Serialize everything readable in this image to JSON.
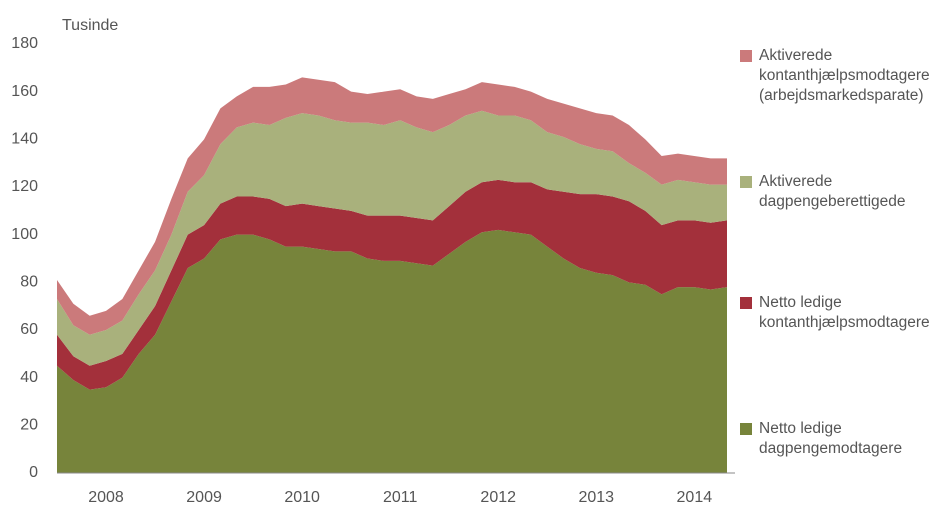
{
  "chart_data": {
    "type": "stacked_area",
    "y_label": "Tusinde",
    "categories": [
      null,
      null,
      null,
      "2008",
      null,
      null,
      null,
      null,
      null,
      "2009",
      null,
      null,
      null,
      null,
      null,
      "2010",
      null,
      null,
      null,
      null,
      null,
      "2011",
      null,
      null,
      null,
      null,
      null,
      "2012",
      null,
      null,
      null,
      null,
      null,
      "2013",
      null,
      null,
      null,
      null,
      null,
      "2014",
      null,
      null
    ],
    "ylim": [
      0,
      180
    ],
    "yticks": [
      0,
      20,
      40,
      60,
      80,
      100,
      120,
      140,
      160,
      180
    ],
    "series": [
      {
        "name": "Netto ledige dagpengemodtagere",
        "color": "#77843b",
        "values": [
          45,
          39,
          35,
          36,
          40,
          50,
          58,
          72,
          86,
          90,
          98,
          100,
          100,
          98,
          95,
          95,
          94,
          93,
          93,
          90,
          89,
          89,
          88,
          87,
          92,
          97,
          101,
          102,
          101,
          100,
          95,
          90,
          86,
          84,
          83,
          80,
          79,
          75,
          78,
          78,
          77,
          78
        ]
      },
      {
        "name": "Netto ledige kontanthjælpsmodtagere",
        "color": "#a3303b",
        "values": [
          13,
          10,
          10,
          11,
          10,
          10,
          12,
          13,
          14,
          14,
          15,
          16,
          16,
          17,
          17,
          18,
          18,
          18,
          17,
          18,
          19,
          19,
          19,
          19,
          20,
          21,
          21,
          21,
          21,
          22,
          24,
          28,
          31,
          33,
          33,
          34,
          31,
          29,
          28,
          28,
          28,
          28
        ]
      },
      {
        "name": "Aktiverede dagpengeberettigede",
        "color": "#a9b17c",
        "values": [
          15,
          13,
          13,
          13,
          14,
          15,
          15,
          15,
          18,
          21,
          25,
          29,
          31,
          31,
          37,
          38,
          38,
          37,
          37,
          39,
          38,
          40,
          38,
          37,
          34,
          32,
          30,
          27,
          28,
          26,
          24,
          23,
          21,
          19,
          19,
          16,
          16,
          17,
          17,
          16,
          16,
          15
        ]
      },
      {
        "name": "Aktiverede kontanthjælpsmodtagere (arbejdsmarkedsparate)",
        "color": "#cb7a7b",
        "values": [
          8,
          9,
          8,
          8,
          9,
          10,
          12,
          15,
          14,
          15,
          15,
          13,
          15,
          16,
          14,
          15,
          15,
          16,
          13,
          12,
          14,
          13,
          13,
          14,
          13,
          11,
          12,
          13,
          12,
          12,
          14,
          14,
          15,
          15,
          15,
          16,
          14,
          12,
          11,
          11,
          11,
          11
        ]
      }
    ]
  }
}
